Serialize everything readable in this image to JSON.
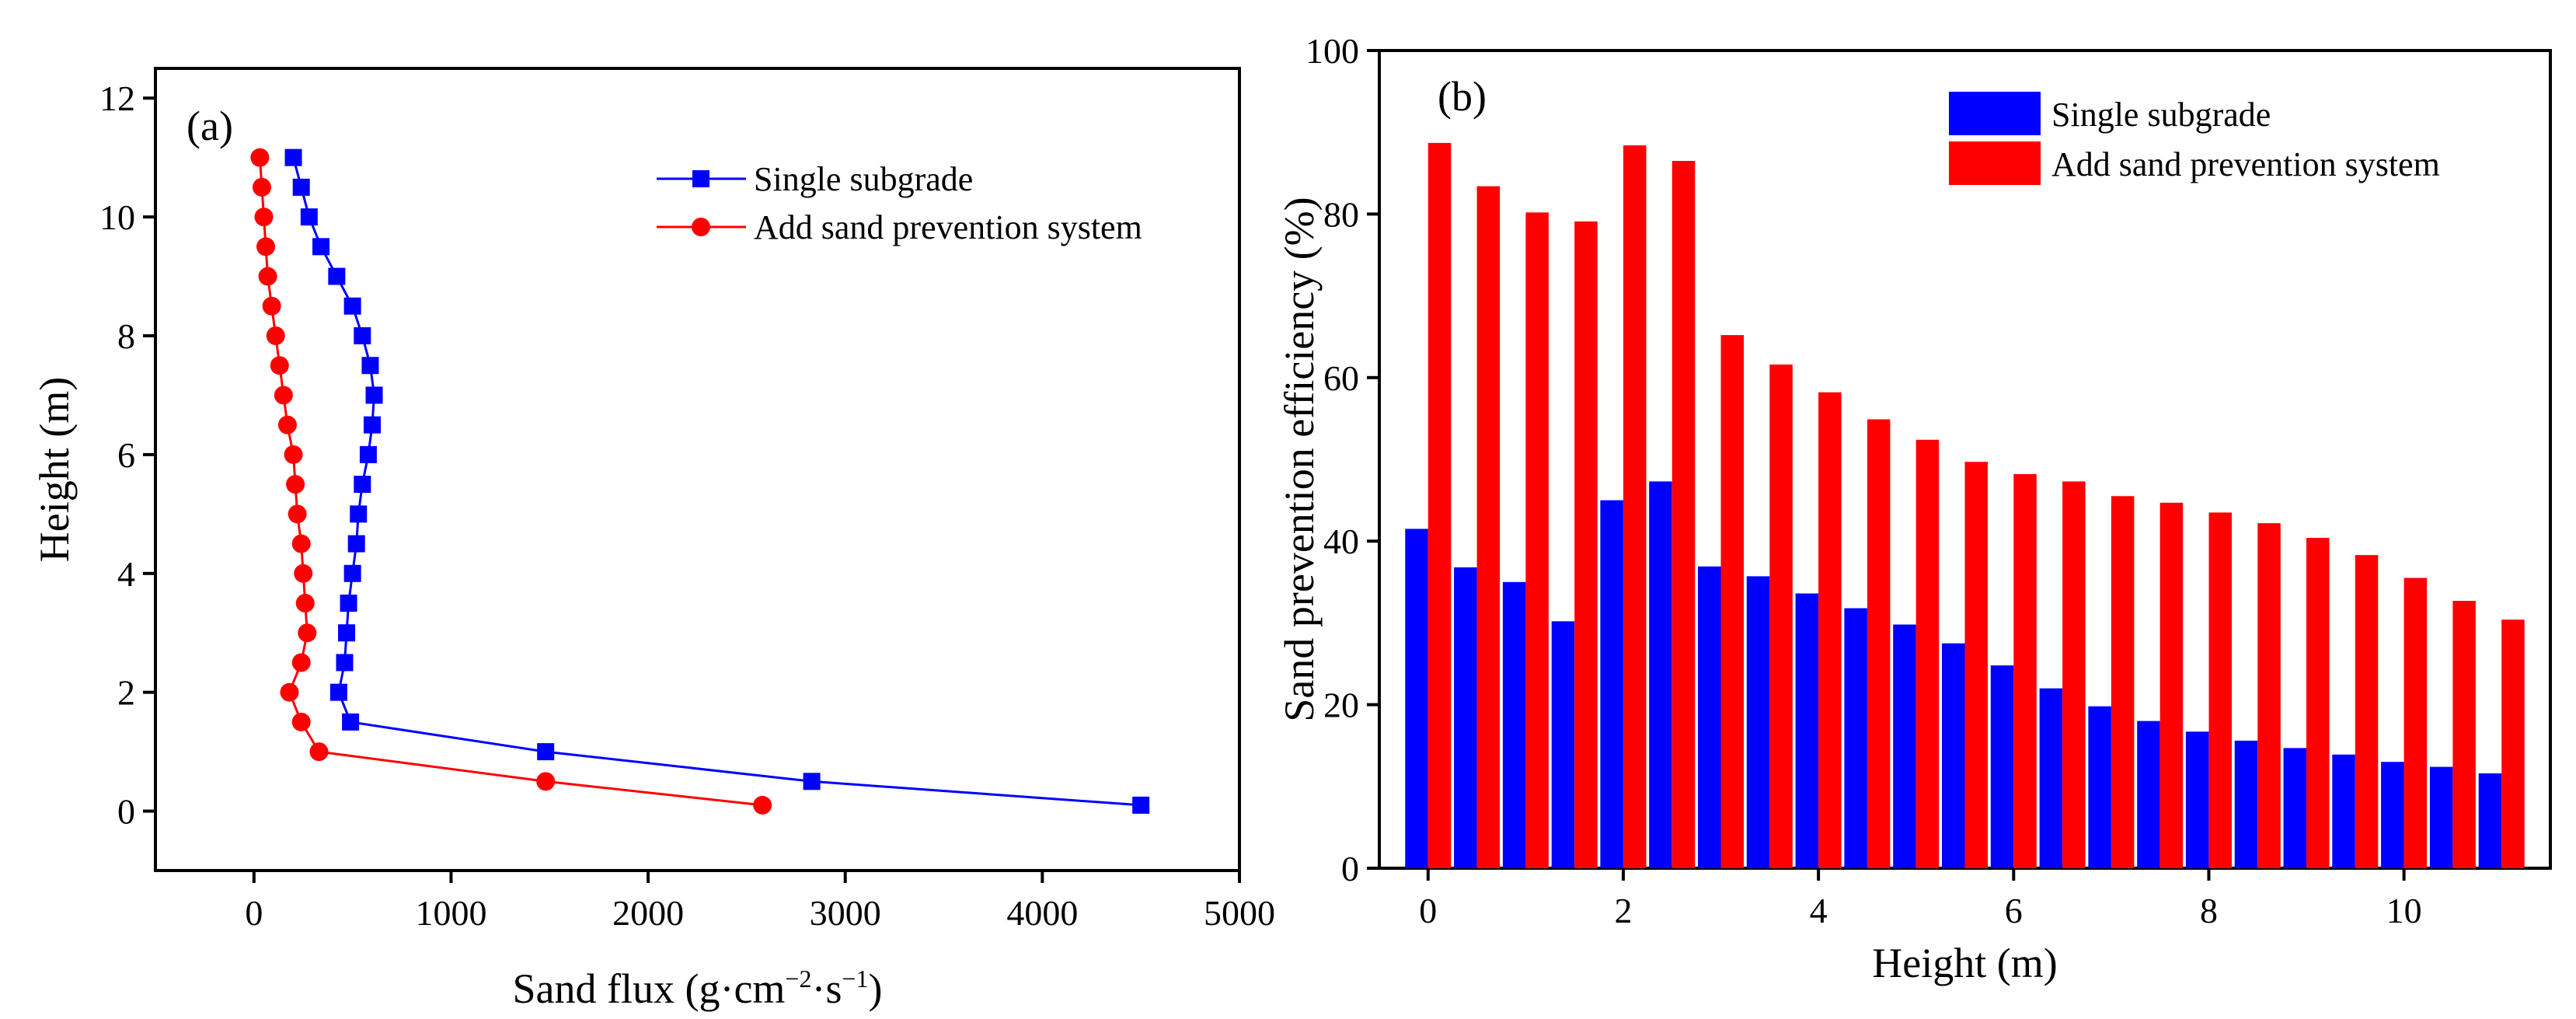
{
  "chart_data": [
    {
      "type": "line",
      "panel_label": "(a)",
      "title": "",
      "xlabel": "Sand flux (g·cm⁻²·s⁻¹)",
      "ylabel": "Height (m)",
      "xlim": [
        -500,
        5000
      ],
      "ylim": [
        -1,
        12.5
      ],
      "xticks": [
        0,
        1000,
        2000,
        3000,
        4000,
        5000
      ],
      "xtick_labels": [
        "0",
        "1000",
        "2000",
        "3000",
        "4000",
        "5000"
      ],
      "yticks": [
        0,
        2,
        4,
        6,
        8,
        10,
        12
      ],
      "ytick_labels": [
        "0",
        "2",
        "4",
        "6",
        "8",
        "10",
        "12"
      ],
      "legend_position": "top-right",
      "series": [
        {
          "name": "Single subgrade",
          "color": "#0000ff",
          "marker": "square",
          "points": [
            [
              4500,
              0.1
            ],
            [
              2830,
              0.5
            ],
            [
              1480,
              1.0
            ],
            [
              490,
              1.5
            ],
            [
              430,
              2.0
            ],
            [
              460,
              2.5
            ],
            [
              470,
              3.0
            ],
            [
              480,
              3.5
            ],
            [
              500,
              4.0
            ],
            [
              520,
              4.5
            ],
            [
              530,
              5.0
            ],
            [
              550,
              5.5
            ],
            [
              580,
              6.0
            ],
            [
              600,
              6.5
            ],
            [
              610,
              7.0
            ],
            [
              590,
              7.5
            ],
            [
              550,
              8.0
            ],
            [
              500,
              8.5
            ],
            [
              420,
              9.0
            ],
            [
              340,
              9.5
            ],
            [
              280,
              10.0
            ],
            [
              240,
              10.5
            ],
            [
              200,
              11.0
            ]
          ]
        },
        {
          "name": "Add sand prevention system",
          "color": "#ff0000",
          "marker": "circle",
          "points": [
            [
              2580,
              0.1
            ],
            [
              1480,
              0.5
            ],
            [
              330,
              1.0
            ],
            [
              240,
              1.5
            ],
            [
              180,
              2.0
            ],
            [
              240,
              2.5
            ],
            [
              270,
              3.0
            ],
            [
              260,
              3.5
            ],
            [
              250,
              4.0
            ],
            [
              240,
              4.5
            ],
            [
              220,
              5.0
            ],
            [
              210,
              5.5
            ],
            [
              200,
              6.0
            ],
            [
              170,
              6.5
            ],
            [
              150,
              7.0
            ],
            [
              130,
              7.5
            ],
            [
              110,
              8.0
            ],
            [
              90,
              8.5
            ],
            [
              70,
              9.0
            ],
            [
              60,
              9.5
            ],
            [
              50,
              10.0
            ],
            [
              40,
              10.5
            ],
            [
              30,
              11.0
            ]
          ]
        }
      ]
    },
    {
      "type": "bar",
      "panel_label": "(b)",
      "title": "",
      "xlabel": "Height (m)",
      "ylabel": "Sand prevention efficiency (%)",
      "xlim": [
        -0.5,
        11.5
      ],
      "ylim": [
        0,
        100
      ],
      "xticks": [
        0,
        2,
        4,
        6,
        8,
        10
      ],
      "xtick_labels": [
        "0",
        "2",
        "4",
        "6",
        "8",
        "10"
      ],
      "yticks": [
        0,
        20,
        40,
        60,
        80,
        100
      ],
      "ytick_labels": [
        "0",
        "20",
        "40",
        "60",
        "80",
        "100"
      ],
      "legend_position": "top-right",
      "categories": [
        0,
        0.5,
        1,
        1.5,
        2,
        2.5,
        3,
        3.5,
        4,
        4.5,
        5,
        5.5,
        6,
        6.5,
        7,
        7.5,
        8,
        8.5,
        9,
        9.5,
        10,
        10.5,
        11
      ],
      "series": [
        {
          "name": "Single subgrade",
          "color": "#0000ff",
          "values": [
            41.5,
            36.8,
            35.0,
            30.2,
            45.0,
            47.3,
            36.9,
            35.7,
            33.6,
            31.8,
            29.8,
            27.5,
            24.8,
            22.0,
            19.8,
            18.0,
            16.7,
            15.6,
            14.7,
            13.9,
            13.0,
            12.4,
            11.6
          ]
        },
        {
          "name": "Add sand prevention system",
          "color": "#ff0000",
          "values": [
            88.7,
            83.4,
            80.2,
            79.1,
            88.4,
            86.5,
            65.2,
            61.6,
            58.2,
            54.9,
            52.4,
            49.7,
            48.2,
            47.3,
            45.5,
            44.7,
            43.5,
            42.2,
            40.4,
            38.3,
            35.5,
            32.7,
            30.4
          ]
        }
      ]
    }
  ]
}
